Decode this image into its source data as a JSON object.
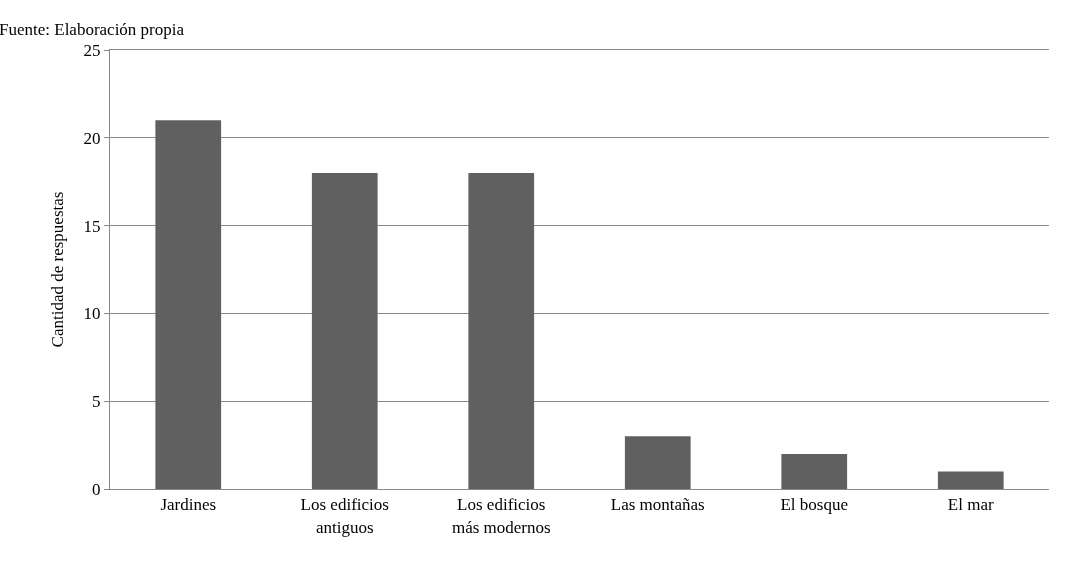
{
  "chart_data": {
    "type": "bar",
    "ylabel": "Cantidad de respuestas",
    "annotations": [
      "Fuente: Elaboración propia"
    ],
    "categories": [
      "Jardines",
      "Los edificios\nantiguos",
      "Los edificios\nmás modernos",
      "Las montañas",
      "El bosque",
      "El mar"
    ],
    "values": [
      21,
      18,
      18,
      3,
      2,
      1
    ],
    "color": "#606060",
    "ylim": [
      0,
      25
    ],
    "yticks": [
      0,
      5,
      10,
      15,
      20,
      25
    ],
    "grid": "y"
  }
}
